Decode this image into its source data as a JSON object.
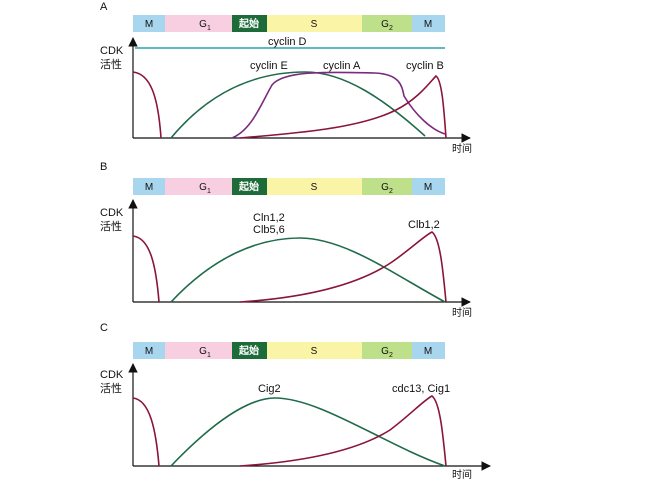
{
  "panels": [
    {
      "letter": "A",
      "y_label": [
        "CDK",
        "活性"
      ],
      "x_label": "时间",
      "phases": [
        "M",
        "G1",
        "起始",
        "S",
        "G2",
        "M"
      ],
      "cyclin_d_label": "cyclin D",
      "curve_labels": [
        "cyclin E",
        "cyclin A",
        "cyclin B"
      ]
    },
    {
      "letter": "B",
      "y_label": [
        "CDK",
        "活性"
      ],
      "x_label": "时间",
      "phases": [
        "M",
        "G1",
        "起始",
        "S",
        "G2",
        "M"
      ],
      "curve_labels": [
        "Cln1,2",
        "Clb5,6",
        "Clb1,2"
      ]
    },
    {
      "letter": "C",
      "y_label": [
        "CDK",
        "活性"
      ],
      "x_label": "时间",
      "phases": [
        "M",
        "G1",
        "起始",
        "S",
        "G2",
        "M"
      ],
      "curve_labels": [
        "Cig2",
        "cdc13, Cig1"
      ]
    }
  ],
  "colors": {
    "m_phase": "#a9d6ef",
    "g1_phase": "#f8cfe0",
    "start_phase": "#1e6b3a",
    "s_phase": "#faf4a6",
    "g2_phase": "#bfe08a",
    "cdk_maroon": "#8a1538",
    "g1_cyclin_green": "#1f6b4a",
    "s_cyclin_purple": "#7b2a7e",
    "cyclin_d_teal": "#2aa0b0"
  }
}
